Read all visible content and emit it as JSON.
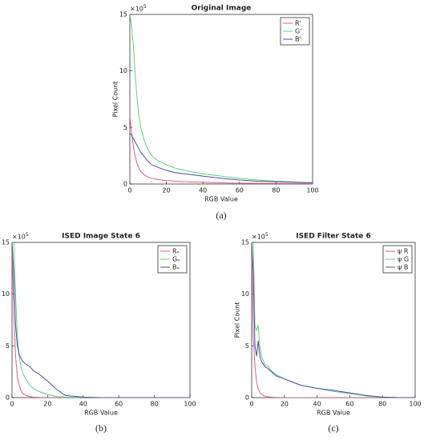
{
  "chart_data": [
    {
      "type": "line",
      "title": "Original Image",
      "xlabel": "RGB Value",
      "ylabel": "Pixel Count",
      "exponent": "×10",
      "exponent_power": "5",
      "caption": "(a)",
      "x": [
        0,
        1,
        2,
        3,
        4,
        5,
        6,
        8,
        10,
        12,
        15,
        20,
        25,
        30,
        40,
        50,
        60,
        70,
        80,
        90,
        100
      ],
      "xlim": [
        0,
        100
      ],
      "ylim": [
        0,
        15
      ],
      "xticks": [
        0,
        20,
        40,
        60,
        80,
        100
      ],
      "yticks": [
        0,
        5,
        10,
        15
      ],
      "series": [
        {
          "name": "R'",
          "color": "#e0607e",
          "values": [
            6,
            4.5,
            3.2,
            2.4,
            1.8,
            1.4,
            1.1,
            0.8,
            0.6,
            0.5,
            0.4,
            0.3,
            0.25,
            0.2,
            0.15,
            0.1,
            0.08,
            0.06,
            0.05,
            0.04,
            0.03
          ]
        },
        {
          "name": "G'",
          "color": "#5fd47a",
          "values": [
            15,
            14,
            12,
            9.5,
            7.5,
            6,
            5,
            3.8,
            3,
            2.5,
            2.1,
            1.7,
            1.4,
            1.2,
            0.9,
            0.7,
            0.5,
            0.35,
            0.25,
            0.18,
            0.12
          ]
        },
        {
          "name": "B'",
          "color": "#4b4fa8",
          "values": [
            4.5,
            4.3,
            4,
            3.7,
            3.4,
            3.1,
            2.8,
            2.4,
            2,
            1.7,
            1.5,
            1.2,
            1,
            0.9,
            0.7,
            0.5,
            0.35,
            0.25,
            0.2,
            0.15,
            0.1
          ]
        }
      ]
    },
    {
      "type": "line",
      "title": "ISED Image State 6",
      "xlabel": "RGB Value",
      "ylabel": "Pixel Count",
      "exponent": "×10",
      "exponent_power": "5",
      "caption": "(b)",
      "x": [
        0,
        1,
        2,
        3,
        4,
        5,
        6,
        8,
        10,
        12,
        15,
        20,
        25,
        30,
        40,
        50,
        60,
        70,
        80,
        90,
        100
      ],
      "xlim": [
        0,
        100
      ],
      "ylim": [
        0,
        15
      ],
      "xticks": [
        0,
        20,
        40,
        60,
        80,
        100
      ],
      "yticks": [
        0,
        5,
        10,
        15
      ],
      "series": [
        {
          "name": "Rₙ",
          "color": "#e0607e",
          "values": [
            15,
            8,
            4,
            2,
            1.2,
            0.7,
            0.4,
            0.2,
            0.1,
            0.05,
            0.02,
            0,
            0,
            0,
            0,
            0,
            0,
            0,
            0,
            0,
            0
          ]
        },
        {
          "name": "Gₙ",
          "color": "#5fd47a",
          "values": [
            15,
            15,
            10,
            6,
            4,
            3,
            2.4,
            1.7,
            1.2,
            0.9,
            0.6,
            0.3,
            0.1,
            0.05,
            0,
            0,
            0,
            0,
            0,
            0,
            0
          ]
        },
        {
          "name": "Bₙ",
          "color": "#4b4fa8",
          "values": [
            15,
            12,
            7,
            5,
            4.2,
            3.8,
            3.5,
            3.2,
            3,
            2.6,
            2.3,
            1.6,
            0.8,
            0.2,
            0.05,
            0,
            0,
            0,
            0,
            0,
            0
          ]
        }
      ]
    },
    {
      "type": "line",
      "title": "ISED Filter State 6",
      "xlabel": "RGB Value",
      "ylabel": "Pixel Count",
      "exponent": "×10",
      "exponent_power": "5",
      "caption": "(c)",
      "x": [
        0,
        1,
        2,
        3,
        4,
        5,
        6,
        8,
        10,
        12,
        15,
        20,
        25,
        30,
        40,
        50,
        60,
        70,
        80,
        90,
        100
      ],
      "xlim": [
        0,
        100
      ],
      "ylim": [
        0,
        15
      ],
      "xticks": [
        0,
        20,
        40,
        60,
        80,
        100
      ],
      "yticks": [
        0,
        5,
        10,
        15
      ],
      "series": [
        {
          "name": "ψ R",
          "color": "#e0607e",
          "values": [
            15,
            6,
            3,
            1.5,
            0.8,
            0.5,
            0.3,
            0.15,
            0.08,
            0.05,
            0.02,
            0,
            0,
            0,
            0,
            0,
            0,
            0,
            0,
            0,
            0
          ]
        },
        {
          "name": "ψ G",
          "color": "#5fd47a",
          "values": [
            15,
            15,
            7,
            6.5,
            7,
            5,
            4,
            3.2,
            3,
            2.6,
            2.2,
            1.8,
            1.5,
            1.2,
            0.9,
            0.6,
            0.4,
            0.15,
            0.05,
            0,
            0
          ]
        },
        {
          "name": "ψ B",
          "color": "#4b4fa8",
          "values": [
            15,
            12,
            5,
            4,
            5.5,
            4,
            3.5,
            3,
            2.8,
            2.5,
            2.1,
            1.8,
            1.5,
            1.2,
            0.9,
            0.7,
            0.45,
            0.2,
            0.05,
            0,
            0
          ]
        }
      ]
    }
  ]
}
